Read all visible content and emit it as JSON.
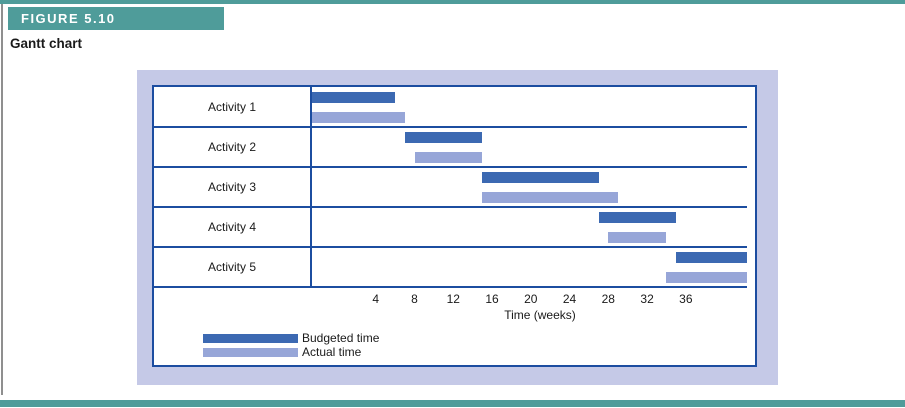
{
  "page": {
    "figure_label": "FIGURE 5.10",
    "title": "Gantt chart"
  },
  "colors": {
    "teal": "#4f9c9a",
    "panel": "#c5c9e7",
    "frame_blue": "#1c4da0",
    "budgeted_bar": "#3c69b2",
    "actual_bar": "#97a6d8"
  },
  "chart_data": {
    "type": "bar",
    "subtype": "gantt",
    "categories": [
      "Activity 1",
      "Activity 2",
      "Activity 3",
      "Activity 4",
      "Activity 5"
    ],
    "series": [
      {
        "name": "Budgeted time",
        "color": "#3c69b2",
        "ranges_weeks": [
          [
            0,
            6
          ],
          [
            7,
            15
          ],
          [
            15,
            27
          ],
          [
            27,
            35
          ],
          [
            35,
            42.5
          ]
        ]
      },
      {
        "name": "Actual time",
        "color": "#97a6d8",
        "ranges_weeks": [
          [
            0,
            7
          ],
          [
            8,
            15
          ],
          [
            15,
            29
          ],
          [
            28,
            34
          ],
          [
            34,
            42.5
          ]
        ]
      }
    ],
    "xlabel": "Time (weeks)",
    "ticks": [
      4,
      8,
      12,
      16,
      20,
      24,
      28,
      32,
      36
    ],
    "xlim": [
      0,
      42.5
    ],
    "grid": false,
    "legend_position": "bottom-left",
    "legend": [
      "Budgeted time",
      "Actual time"
    ]
  }
}
